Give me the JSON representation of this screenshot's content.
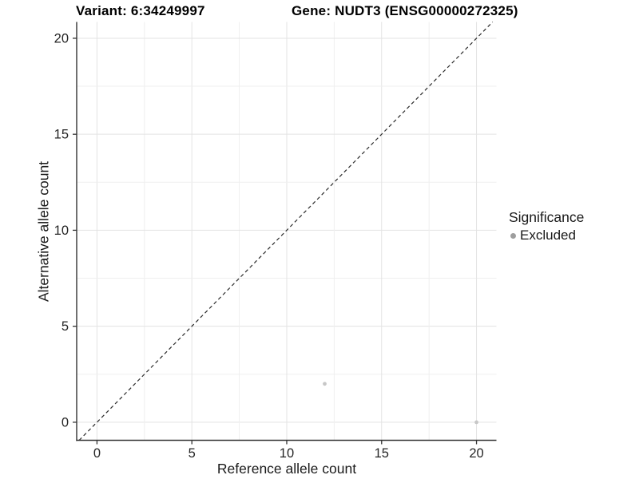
{
  "header": {
    "variant_title": "Variant: 6:34249997",
    "gene_title": "Gene: NUDT3 (ENSG00000272325)"
  },
  "legend": {
    "title": "Significance",
    "items": [
      {
        "label": "Excluded",
        "key_color": "#9e9e9e"
      }
    ]
  },
  "chart_data": {
    "type": "scatter",
    "title": "Variant: 6:34249997    Gene: NUDT3 (ENSG00000272325)",
    "xlabel": "Reference allele count",
    "ylabel": "Alternative allele count",
    "xlim": [
      -1.07,
      21.05
    ],
    "ylim": [
      -0.94,
      20.85
    ],
    "x_ticks": [
      0,
      5,
      10,
      15,
      20
    ],
    "y_ticks": [
      0,
      5,
      10,
      15,
      20
    ],
    "grid": true,
    "grid_step": 2.5,
    "legend_position": "right",
    "series": [
      {
        "name": "Excluded",
        "color": "#c7c7c7",
        "points": [
          {
            "x": 12,
            "y": 2
          },
          {
            "x": 20,
            "y": 0
          }
        ]
      }
    ],
    "identity_line": {
      "style": "dashed",
      "slope": 1,
      "intercept": 0,
      "from": -0.94,
      "to": 20.85
    }
  },
  "colors": {
    "background": "#ffffff",
    "grid_major": "#e3e3e3",
    "grid_minor": "#efefef",
    "axis_line": "#333333",
    "tick_mark": "#333333",
    "tick_label": "#262626",
    "identity_line": "#2a2a2a",
    "point": "#c7c7c7",
    "legend_dot": "#9e9e9e"
  }
}
